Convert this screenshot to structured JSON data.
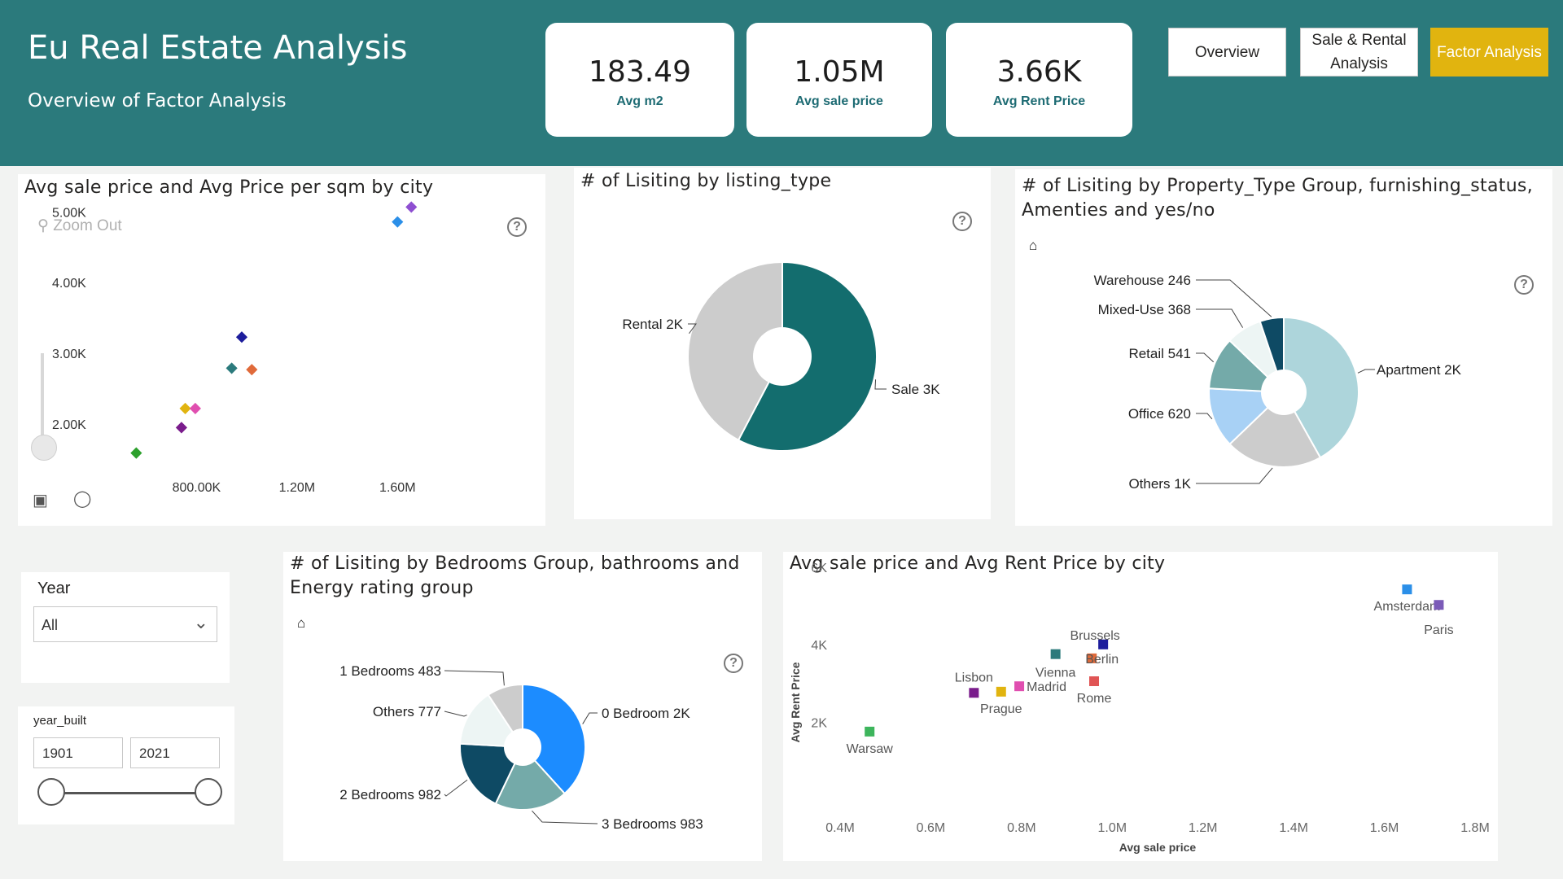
{
  "header": {
    "title": "Eu Real Estate Analysis",
    "subtitle": "Overview of Factor Analysis",
    "background": "#2b7a7c"
  },
  "kpis": [
    {
      "value": "183.49",
      "label": "Avg m2"
    },
    {
      "value": "1.05M",
      "label": "Avg sale price"
    },
    {
      "value": "3.66K",
      "label": "Avg Rent Price"
    }
  ],
  "nav": {
    "overview": "Overview",
    "sale_rental": "Sale & Rental Analysis",
    "factor": "Factor Analysis",
    "active": "Factor Analysis",
    "active_color": "#e1b40f"
  },
  "scatter1": {
    "title": "Avg sale price and Avg Price per sqm by city",
    "zoom_label": "Zoom Out",
    "help": "?"
  },
  "donut_listing": {
    "title": "# of Lisiting by listing_type",
    "help": "?"
  },
  "donut_property": {
    "title": "# of Lisiting by Property_Type Group, furnishing_status, Amenties and yes/no",
    "help": "?",
    "home_icon": "⌂"
  },
  "donut_bedrooms": {
    "title": "# of Lisiting by Bedrooms Group, bathrooms and Energy rating group",
    "help": "?",
    "home_icon": "⌂"
  },
  "scatter2": {
    "title": "Avg sale price and Avg Rent Price by city"
  },
  "slicer_year": {
    "title": "Year",
    "value": "All"
  },
  "slicer_year_built": {
    "title": "year_built",
    "min": "1901",
    "max": "2021"
  },
  "chart_data": [
    {
      "type": "scatter",
      "title": "Avg sale price and Avg Price per sqm by city",
      "xlabel": "",
      "ylabel": "",
      "x_ticks": [
        "800.00K",
        "1.20M",
        "1.60M"
      ],
      "y_ticks": [
        "2.00K",
        "3.00K",
        "4.00K",
        "5.00K"
      ],
      "xlim": [
        400000,
        1800000
      ],
      "ylim": [
        1400,
        5200
      ],
      "points": [
        {
          "x": 560000,
          "y": 1600,
          "color": "#2ca02c"
        },
        {
          "x": 1600000,
          "y": 4870,
          "color": "#2b8fe8"
        },
        {
          "x": 1655000,
          "y": 5080,
          "color": "#8e4fd1"
        },
        {
          "x": 980000,
          "y": 3240,
          "color": "#1d1d9c"
        },
        {
          "x": 940000,
          "y": 2800,
          "color": "#2b7a7c"
        },
        {
          "x": 1020000,
          "y": 2780,
          "color": "#e06a3a"
        },
        {
          "x": 755000,
          "y": 2230,
          "color": "#e1b40f"
        },
        {
          "x": 795000,
          "y": 2230,
          "color": "#e04fb0"
        },
        {
          "x": 740000,
          "y": 1960,
          "color": "#7a1c8c"
        }
      ]
    },
    {
      "type": "pie",
      "title": "# of Lisiting by listing_type",
      "slices": [
        {
          "label": "Sale 3K",
          "value": 3000,
          "color": "#136d6e"
        },
        {
          "label": "Rental 2K",
          "value": 2200,
          "color": "#cccccc"
        }
      ]
    },
    {
      "type": "pie",
      "title": "# of Lisiting by Property_Type Group, furnishing_status, Amenties and yes/no",
      "slices": [
        {
          "label": "Apartment 2K",
          "value": 2000,
          "color": "#add5db"
        },
        {
          "label": "Others 1K",
          "value": 1000,
          "color": "#cccccc"
        },
        {
          "label": "Office 620",
          "value": 620,
          "color": "#a8d1f5"
        },
        {
          "label": "Retail 541",
          "value": 541,
          "color": "#74aaa9"
        },
        {
          "label": "Mixed-Use 368",
          "value": 368,
          "color": "#edf5f4"
        },
        {
          "label": "Warehouse 246",
          "value": 246,
          "color": "#0e4a64"
        }
      ]
    },
    {
      "type": "pie",
      "title": "# of Lisiting by Bedrooms Group, bathrooms and Energy rating group",
      "slices": [
        {
          "label": "0 Bedroom 2K",
          "value": 2000,
          "color": "#1c8cff"
        },
        {
          "label": "3 Bedrooms 983",
          "value": 983,
          "color": "#74aaa9"
        },
        {
          "label": "2 Bedrooms 982",
          "value": 982,
          "color": "#0e4a64"
        },
        {
          "label": "Others 777",
          "value": 777,
          "color": "#edf5f4"
        },
        {
          "label": "1 Bedrooms 483",
          "value": 483,
          "color": "#cccccc"
        }
      ]
    },
    {
      "type": "scatter",
      "title": "Avg sale price and Avg Rent Price by city",
      "xlabel": "Avg sale price",
      "ylabel": "Avg Rent Price",
      "x_ticks": [
        "0.4M",
        "0.6M",
        "0.8M",
        "1.0M",
        "1.2M",
        "1.4M",
        "1.6M",
        "1.8M"
      ],
      "y_ticks": [
        "2K",
        "4K",
        "6K"
      ],
      "xlim": [
        400000,
        1800000
      ],
      "ylim": [
        1000,
        6000
      ],
      "points": [
        {
          "label": "Warsaw",
          "x": 465000,
          "y": 1780,
          "color": "#3db55c"
        },
        {
          "label": "Lisbon",
          "x": 695000,
          "y": 2780,
          "color": "#7a1c8c"
        },
        {
          "label": "Prague",
          "x": 755000,
          "y": 2810,
          "color": "#e1b40f"
        },
        {
          "label": "Madrid",
          "x": 795000,
          "y": 2950,
          "color": "#e04fb0"
        },
        {
          "label": "Vienna",
          "x": 875000,
          "y": 3780,
          "color": "#2b7a7c"
        },
        {
          "label": "Rome",
          "x": 960000,
          "y": 3080,
          "color": "#e05555"
        },
        {
          "label": "Berlin",
          "x": 955000,
          "y": 3670,
          "color": "#e06a3a"
        },
        {
          "label": "Brussels",
          "x": 980000,
          "y": 4030,
          "color": "#1d1d9c"
        },
        {
          "label": "Amsterdam",
          "x": 1650000,
          "y": 5450,
          "color": "#2b8fe8"
        },
        {
          "label": "Paris",
          "x": 1720000,
          "y": 5050,
          "color": "#7b5bb8"
        }
      ]
    }
  ]
}
